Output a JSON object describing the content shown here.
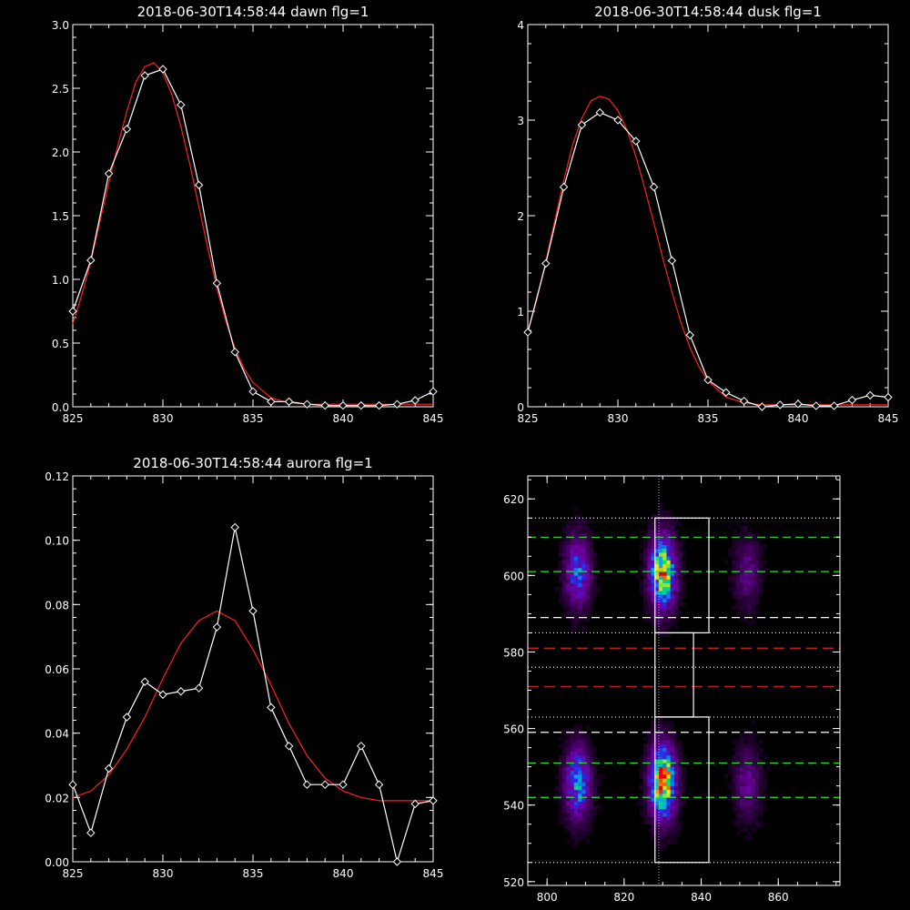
{
  "colors": {
    "background": "#000000",
    "axes": "#ffffff",
    "data_line": "#ffffff",
    "fit_line": "#ff2020",
    "green_line": "#33dd33",
    "red_line": "#dd2222",
    "white_dashed": "#ffffff",
    "vline": "#cc88ff"
  },
  "chart_data": [
    {
      "type": "line",
      "title": "2018-06-30T14:58:44 dawn flg=1",
      "xlim": [
        825,
        845
      ],
      "ylim": [
        0,
        3.0
      ],
      "xticks": [
        "825",
        "830",
        "835",
        "840",
        "845"
      ],
      "yticks": [
        "0.0",
        "0.5",
        "1.0",
        "1.5",
        "2.0",
        "2.5",
        "3.0"
      ],
      "series": [
        {
          "x": [
            825,
            826,
            827,
            828,
            829,
            830,
            831,
            832,
            833,
            834,
            835,
            836,
            837,
            838,
            839,
            840,
            841,
            842,
            843,
            844,
            845
          ],
          "y": [
            0.75,
            1.15,
            1.83,
            2.18,
            2.6,
            2.65,
            2.37,
            1.74,
            0.97,
            0.43,
            0.12,
            0.04,
            0.04,
            0.02,
            0.01,
            0.01,
            0.01,
            0.01,
            0.02,
            0.05,
            0.12
          ]
        },
        {
          "x": [
            825,
            825.5,
            826,
            826.5,
            827,
            827.5,
            828,
            828.5,
            829,
            829.5,
            830,
            830.5,
            831,
            831.5,
            832,
            832.5,
            833,
            833.5,
            834,
            834.5,
            835,
            836,
            837,
            838,
            839,
            840,
            841,
            842,
            843,
            844,
            845
          ],
          "y": [
            0.65,
            0.88,
            1.14,
            1.45,
            1.76,
            2.05,
            2.32,
            2.55,
            2.67,
            2.7,
            2.62,
            2.45,
            2.2,
            1.9,
            1.57,
            1.24,
            0.93,
            0.67,
            0.46,
            0.3,
            0.19,
            0.07,
            0.03,
            0.02,
            0.02,
            0.02,
            0.02,
            0.02,
            0.02,
            0.02,
            0.02
          ]
        }
      ]
    },
    {
      "type": "line",
      "title": "2018-06-30T14:58:44 dusk flg=1",
      "xlim": [
        825,
        845
      ],
      "ylim": [
        0,
        4
      ],
      "xticks": [
        "825",
        "830",
        "835",
        "840",
        "845"
      ],
      "yticks": [
        "0",
        "1",
        "2",
        "3",
        "4"
      ],
      "series": [
        {
          "x": [
            825,
            826,
            827,
            828,
            829,
            830,
            831,
            832,
            833,
            834,
            835,
            836,
            837,
            838,
            839,
            840,
            841,
            842,
            843,
            844,
            845
          ],
          "y": [
            0.78,
            1.5,
            2.3,
            2.95,
            3.08,
            3.0,
            2.78,
            2.3,
            1.53,
            0.75,
            0.28,
            0.15,
            0.06,
            0.0,
            0.02,
            0.03,
            0.01,
            0.01,
            0.07,
            0.12,
            0.1
          ]
        },
        {
          "x": [
            825,
            825.5,
            826,
            826.5,
            827,
            827.5,
            828,
            828.5,
            829,
            829.5,
            830,
            830.5,
            831,
            831.5,
            832,
            832.5,
            833,
            833.5,
            834,
            834.5,
            835,
            836,
            837,
            838,
            839,
            840,
            841,
            842,
            843,
            844,
            845
          ],
          "y": [
            0.78,
            1.12,
            1.52,
            1.95,
            2.37,
            2.75,
            3.02,
            3.2,
            3.25,
            3.22,
            3.1,
            2.9,
            2.62,
            2.28,
            1.92,
            1.55,
            1.2,
            0.88,
            0.62,
            0.42,
            0.27,
            0.1,
            0.04,
            0.02,
            0.02,
            0.02,
            0.02,
            0.02,
            0.02,
            0.02,
            0.02
          ]
        }
      ]
    },
    {
      "type": "line",
      "title": "2018-06-30T14:58:44 aurora flg=1",
      "xlim": [
        825,
        845
      ],
      "ylim": [
        0,
        0.12
      ],
      "xticks": [
        "825",
        "830",
        "835",
        "840",
        "845"
      ],
      "yticks": [
        "0.00",
        "0.02",
        "0.04",
        "0.06",
        "0.08",
        "0.10",
        "0.12"
      ],
      "series": [
        {
          "x": [
            825,
            826,
            827,
            828,
            829,
            830,
            831,
            832,
            833,
            834,
            835,
            836,
            837,
            838,
            839,
            840,
            841,
            842,
            843,
            844,
            845
          ],
          "y": [
            0.024,
            0.009,
            0.029,
            0.045,
            0.056,
            0.052,
            0.053,
            0.054,
            0.073,
            0.104,
            0.078,
            0.048,
            0.036,
            0.024,
            0.024,
            0.024,
            0.036,
            0.024,
            0.0,
            0.018,
            0.019
          ]
        },
        {
          "x": [
            825,
            826,
            827,
            828,
            829,
            830,
            831,
            832,
            833,
            834,
            835,
            836,
            837,
            838,
            839,
            840,
            841,
            842,
            843,
            844,
            845
          ],
          "y": [
            0.02,
            0.022,
            0.027,
            0.035,
            0.045,
            0.057,
            0.068,
            0.075,
            0.078,
            0.075,
            0.066,
            0.055,
            0.043,
            0.033,
            0.026,
            0.022,
            0.02,
            0.019,
            0.019,
            0.019,
            0.019
          ]
        }
      ]
    },
    {
      "type": "heatmap",
      "xlim": [
        795,
        876
      ],
      "ylim": [
        519,
        626
      ],
      "xticks": [
        "800",
        "820",
        "840",
        "860"
      ],
      "yticks": [
        "520",
        "540",
        "560",
        "580",
        "600",
        "620"
      ],
      "vertical_line_x": 829,
      "green_dashed_y": [
        610,
        601,
        551,
        542
      ],
      "white_dashed_y": [
        589,
        559
      ],
      "red_dashed_y": [
        581,
        571
      ],
      "dotted_y": [
        615,
        585,
        576,
        563,
        525
      ],
      "upper_box": {
        "x": [
          828,
          842
        ],
        "y": [
          585,
          615
        ]
      },
      "middle_box": {
        "x": [
          828,
          838
        ],
        "y": [
          563,
          585
        ]
      },
      "lower_box": {
        "x": [
          828,
          842
        ],
        "y": [
          525,
          563
        ]
      },
      "spots": [
        {
          "x": 808,
          "y": 601,
          "intensity": 0.45
        },
        {
          "x": 830,
          "y": 601,
          "intensity": 0.85
        },
        {
          "x": 852,
          "y": 601,
          "intensity": 0.22
        },
        {
          "x": 808,
          "y": 546,
          "intensity": 0.55
        },
        {
          "x": 830,
          "y": 546,
          "intensity": 0.95
        },
        {
          "x": 852,
          "y": 546,
          "intensity": 0.25
        }
      ]
    }
  ]
}
